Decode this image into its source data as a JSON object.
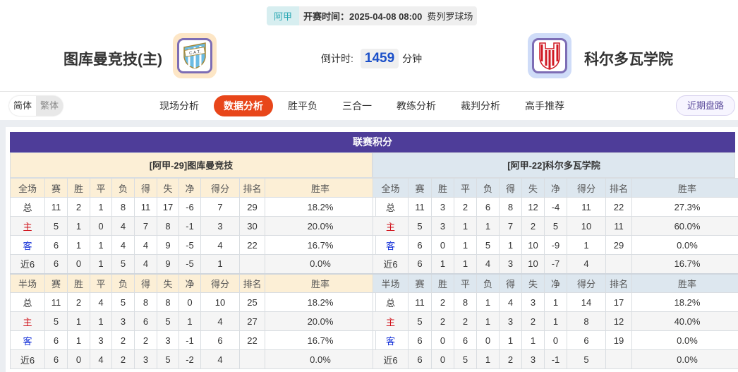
{
  "match": {
    "league": "阿甲",
    "time": "开赛时间：2025-04-08 08:00",
    "venue": "费列罗球场",
    "countdown_label": "倒计时:",
    "countdown_value": "1459",
    "countdown_unit": "分钟"
  },
  "home_team": {
    "name": "图库曼竞技(主)",
    "logo_text": "C.A.T."
  },
  "away_team": {
    "name": "科尔多瓦学院",
    "logo_text": "I.A.C.C."
  },
  "lang": {
    "simplified": "简体",
    "traditional": "繁体"
  },
  "tabs": [
    {
      "label": "现场分析"
    },
    {
      "label": "数据分析",
      "active": true
    },
    {
      "label": "胜平负"
    },
    {
      "label": "三合一"
    },
    {
      "label": "教练分析"
    },
    {
      "label": "裁判分析"
    },
    {
      "label": "高手推荐"
    }
  ],
  "recent_button": "近期盘路",
  "standings": {
    "title": "联赛积分",
    "columns_full": [
      "全场",
      "赛",
      "胜",
      "平",
      "负",
      "得",
      "失",
      "净",
      "得分",
      "排名",
      "胜率"
    ],
    "columns_half": [
      "半场",
      "赛",
      "胜",
      "平",
      "负",
      "得",
      "失",
      "净",
      "得分",
      "排名",
      "胜率"
    ],
    "home": {
      "header": "[阿甲-29]图库曼竞技",
      "full": [
        [
          "总",
          "11",
          "2",
          "1",
          "8",
          "11",
          "17",
          "-6",
          "7",
          "29",
          "18.2%"
        ],
        [
          "主",
          "5",
          "1",
          "0",
          "4",
          "7",
          "8",
          "-1",
          "3",
          "30",
          "20.0%"
        ],
        [
          "客",
          "6",
          "1",
          "1",
          "4",
          "4",
          "9",
          "-5",
          "4",
          "22",
          "16.7%"
        ],
        [
          "近6",
          "6",
          "0",
          "1",
          "5",
          "4",
          "9",
          "-5",
          "1",
          "",
          "0.0%"
        ]
      ],
      "half": [
        [
          "总",
          "11",
          "2",
          "4",
          "5",
          "8",
          "8",
          "0",
          "10",
          "25",
          "18.2%"
        ],
        [
          "主",
          "5",
          "1",
          "1",
          "3",
          "6",
          "5",
          "1",
          "4",
          "27",
          "20.0%"
        ],
        [
          "客",
          "6",
          "1",
          "3",
          "2",
          "2",
          "3",
          "-1",
          "6",
          "22",
          "16.7%"
        ],
        [
          "近6",
          "6",
          "0",
          "4",
          "2",
          "3",
          "5",
          "-2",
          "4",
          "",
          "0.0%"
        ]
      ]
    },
    "away": {
      "header": "[阿甲-22]科尔多瓦学院",
      "full": [
        [
          "总",
          "11",
          "3",
          "2",
          "6",
          "8",
          "12",
          "-4",
          "11",
          "22",
          "27.3%"
        ],
        [
          "主",
          "5",
          "3",
          "1",
          "1",
          "7",
          "2",
          "5",
          "10",
          "11",
          "60.0%"
        ],
        [
          "客",
          "6",
          "0",
          "1",
          "5",
          "1",
          "10",
          "-9",
          "1",
          "29",
          "0.0%"
        ],
        [
          "近6",
          "6",
          "1",
          "1",
          "4",
          "3",
          "10",
          "-7",
          "4",
          "",
          "16.7%"
        ]
      ],
      "half": [
        [
          "总",
          "11",
          "2",
          "8",
          "1",
          "4",
          "3",
          "1",
          "14",
          "17",
          "18.2%"
        ],
        [
          "主",
          "5",
          "2",
          "2",
          "1",
          "3",
          "2",
          "1",
          "8",
          "12",
          "40.0%"
        ],
        [
          "客",
          "6",
          "0",
          "6",
          "0",
          "1",
          "1",
          "0",
          "6",
          "19",
          "0.0%"
        ],
        [
          "近6",
          "6",
          "0",
          "5",
          "1",
          "2",
          "3",
          "-1",
          "5",
          "",
          "0.0%"
        ]
      ]
    }
  },
  "colors": {
    "accent": "#e8461a",
    "title_bar": "#4e3d99",
    "home_label": "#d0121b",
    "away_label": "#1430d8"
  }
}
